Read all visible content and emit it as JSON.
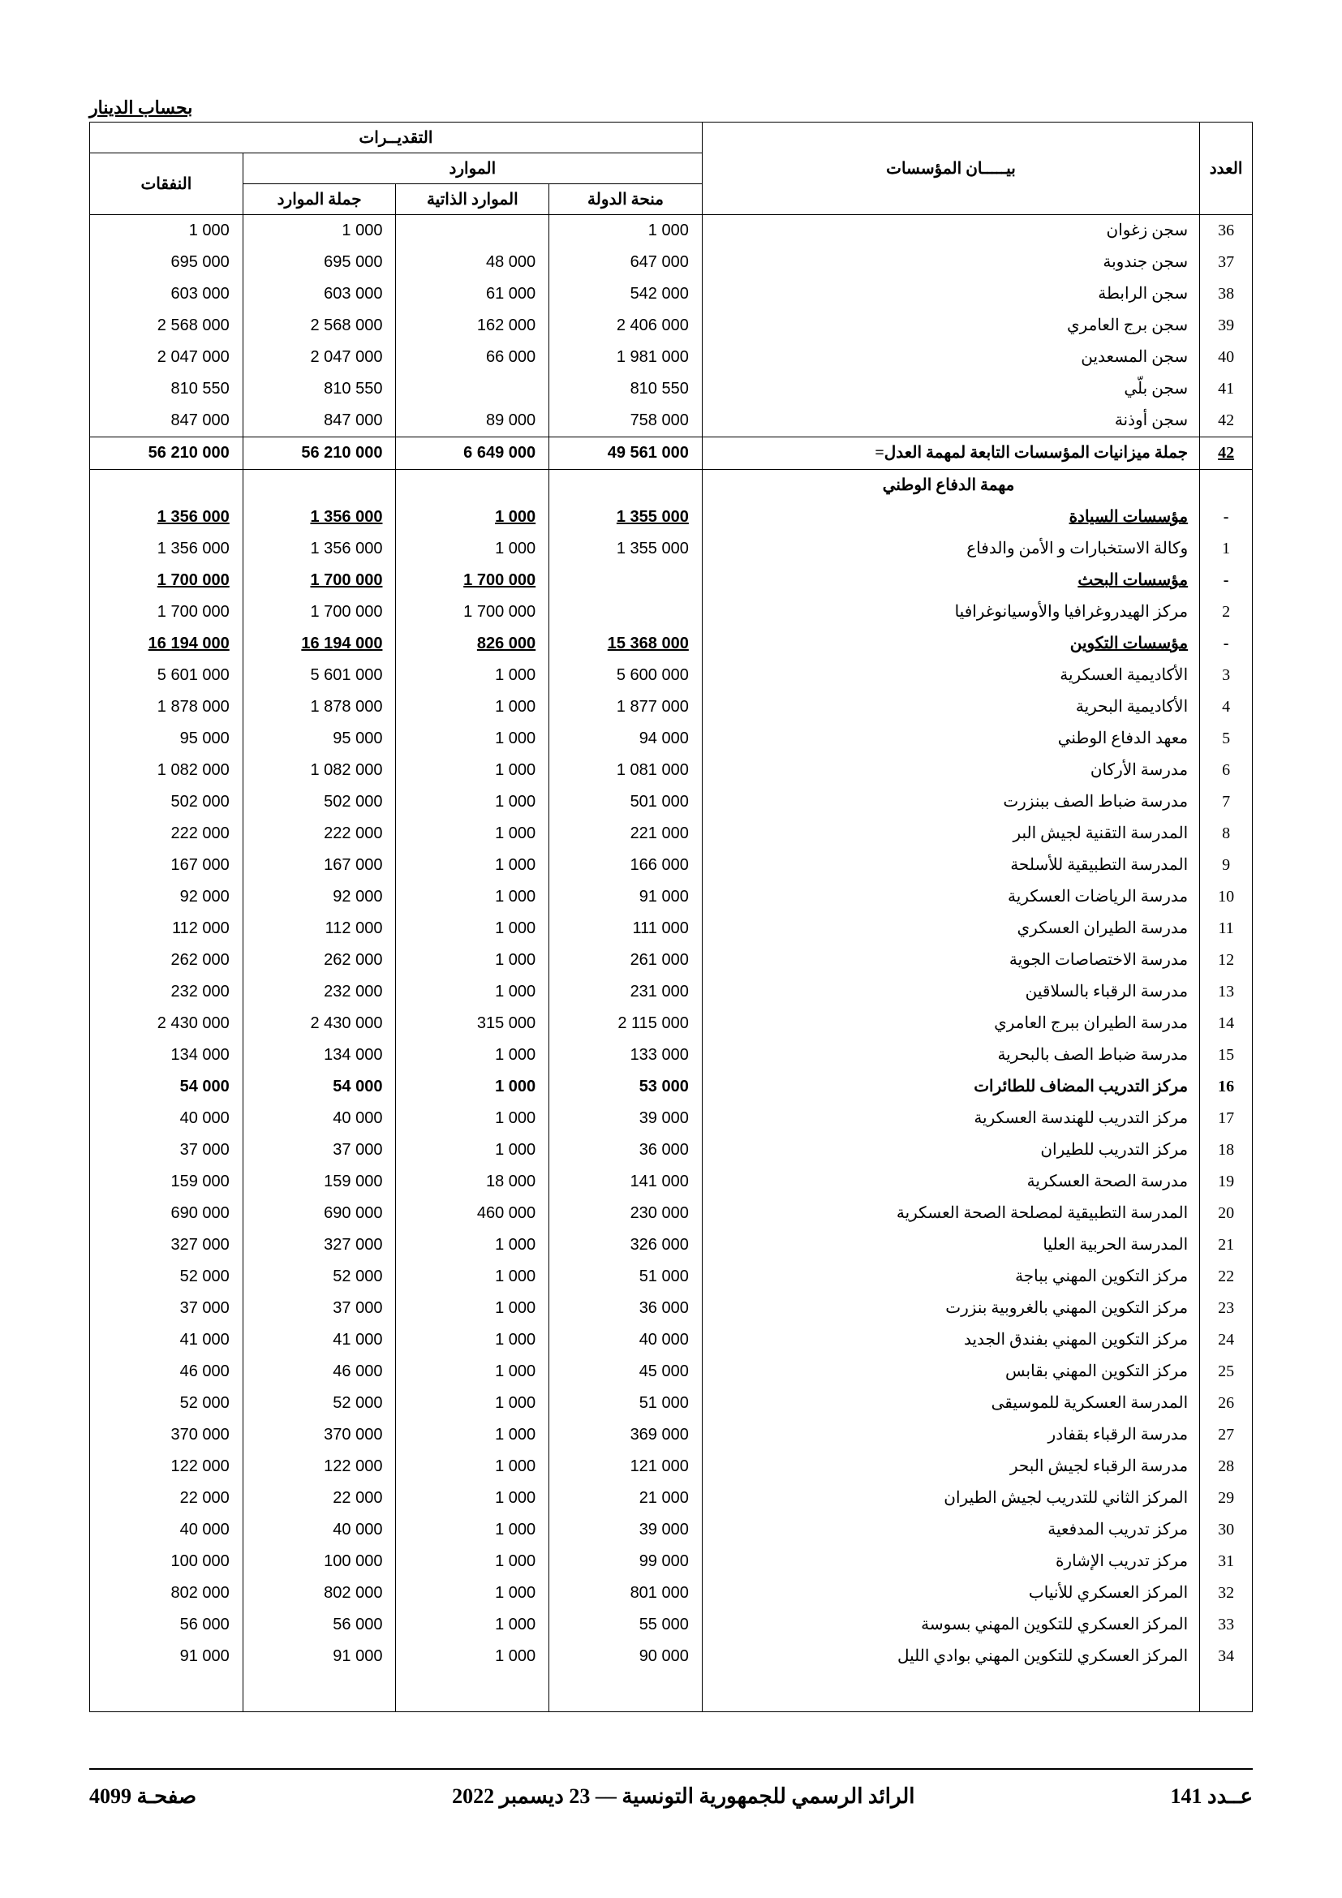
{
  "unit_label": "بحساب الدينار",
  "header": {
    "col_num": "العدد",
    "col_name": "بيـــــان المؤسسات",
    "group_estimates": "التقديــرات",
    "group_resources": "الموارد",
    "col_state_grant": "منحة الدولة",
    "col_own_resources": "الموارد الذاتية",
    "col_total_resources": "جملة الموارد",
    "col_expenses": "النفقات"
  },
  "rows_top": [
    {
      "n": "36",
      "name": "سجن زغوان",
      "c1": "1 000",
      "c2": "",
      "c3": "1 000",
      "c4": "1 000"
    },
    {
      "n": "37",
      "name": "سجن جندوبة",
      "c1": "647 000",
      "c2": "48 000",
      "c3": "695 000",
      "c4": "695 000"
    },
    {
      "n": "38",
      "name": "سجن الرابطة",
      "c1": "542 000",
      "c2": "61 000",
      "c3": "603 000",
      "c4": "603 000"
    },
    {
      "n": "39",
      "name": "سجن برج العامري",
      "c1": "2 406 000",
      "c2": "162 000",
      "c3": "2 568 000",
      "c4": "2 568 000"
    },
    {
      "n": "40",
      "name": "سجن المسعدين",
      "c1": "1 981 000",
      "c2": "66 000",
      "c3": "2 047 000",
      "c4": "2 047 000"
    },
    {
      "n": "41",
      "name": "سجن بلّي",
      "c1": "810 550",
      "c2": "",
      "c3": "810 550",
      "c4": "810 550"
    },
    {
      "n": "42",
      "name": "سجن أوذنة",
      "c1": "758 000",
      "c2": "89 000",
      "c3": "847 000",
      "c4": "847 000"
    }
  ],
  "total_row": {
    "n": "42",
    "name": "جملة ميزانيات المؤسسات التابعة لمهمة  العدل=",
    "c1": "49 561 000",
    "c2": "6 649 000",
    "c3": "56 210 000",
    "c4": "56 210 000"
  },
  "section_title": "مهمة  الدفاع الوطني",
  "sub1": {
    "name": "مؤسسات السيادة",
    "c1": "1 355 000",
    "c2": "1 000",
    "c3": "1 356 000",
    "c4": "1 356 000"
  },
  "r_sub1_1": {
    "n": "1",
    "name": "وكالة الاستخبارات و الأمن والدفاع",
    "c1": "1 355 000",
    "c2": "1 000",
    "c3": "1 356 000",
    "c4": "1 356 000"
  },
  "sub2": {
    "name": "مؤسسات البحث",
    "c1": "",
    "c2": "1 700 000",
    "c3": "1 700 000",
    "c4": "1 700 000"
  },
  "r_sub2_1": {
    "n": "2",
    "name": "مركز الهيدروغرافيا والأوسيانوغرافيا",
    "c1": "",
    "c2": "1 700 000",
    "c3": "1 700 000",
    "c4": "1 700 000"
  },
  "sub3": {
    "name": "مؤسسات التكوين",
    "c1": "15 368 000",
    "c2": "826 000",
    "c3": "16 194 000",
    "c4": "16 194 000"
  },
  "rows_sub3": [
    {
      "n": "3",
      "name": "الأكاديمية العسكرية",
      "c1": "5 600 000",
      "c2": "1 000",
      "c3": "5 601 000",
      "c4": "5 601 000"
    },
    {
      "n": "4",
      "name": "الأكاديمية البحرية",
      "c1": "1 877 000",
      "c2": "1 000",
      "c3": "1 878 000",
      "c4": "1 878 000"
    },
    {
      "n": "5",
      "name": "معهد الدفاع الوطني",
      "c1": "94 000",
      "c2": "1 000",
      "c3": "95 000",
      "c4": "95 000"
    },
    {
      "n": "6",
      "name": "مدرسة الأركان",
      "c1": "1 081 000",
      "c2": "1 000",
      "c3": "1 082 000",
      "c4": "1 082 000"
    },
    {
      "n": "7",
      "name": "مدرسة ضباط الصف ببنزرت",
      "c1": "501 000",
      "c2": "1 000",
      "c3": "502 000",
      "c4": "502 000"
    },
    {
      "n": "8",
      "name": "المدرسة التقنية لجيش البر",
      "c1": "221 000",
      "c2": "1 000",
      "c3": "222 000",
      "c4": "222 000"
    },
    {
      "n": "9",
      "name": "المدرسة التطبيقية للأسلحة",
      "c1": "166 000",
      "c2": "1 000",
      "c3": "167 000",
      "c4": "167 000"
    },
    {
      "n": "10",
      "name": "مدرسة الرياضات العسكرية",
      "c1": "91 000",
      "c2": "1 000",
      "c3": "92 000",
      "c4": "92 000"
    },
    {
      "n": "11",
      "name": "مدرسة الطيران العسكري",
      "c1": "111 000",
      "c2": "1 000",
      "c3": "112 000",
      "c4": "112 000"
    },
    {
      "n": "12",
      "name": "مدرسة الاختصاصات الجوية",
      "c1": "261 000",
      "c2": "1 000",
      "c3": "262 000",
      "c4": "262 000"
    },
    {
      "n": "13",
      "name": "مدرسة الرقباء بالسلاقين",
      "c1": "231 000",
      "c2": "1 000",
      "c3": "232 000",
      "c4": "232 000"
    },
    {
      "n": "14",
      "name": "مدرسة الطيران ببرج العامري",
      "c1": "2 115 000",
      "c2": "315 000",
      "c3": "2 430 000",
      "c4": "2 430 000"
    },
    {
      "n": "15",
      "name": "مدرسة ضباط الصف بالبحرية",
      "c1": "133 000",
      "c2": "1 000",
      "c3": "134 000",
      "c4": "134 000"
    },
    {
      "n": "16",
      "name": "مركز التدريب المضاف للطائرات",
      "c1": "53 000",
      "c2": "1 000",
      "c3": "54 000",
      "c4": "54 000",
      "bold": true
    },
    {
      "n": "17",
      "name": "مركز التدريب للهندسة العسكرية",
      "c1": "39 000",
      "c2": "1 000",
      "c3": "40 000",
      "c4": "40 000"
    },
    {
      "n": "18",
      "name": "مركز التدريب للطيران",
      "c1": "36 000",
      "c2": "1 000",
      "c3": "37 000",
      "c4": "37 000"
    },
    {
      "n": "19",
      "name": "مدرسة الصحة العسكرية",
      "c1": "141 000",
      "c2": "18 000",
      "c3": "159 000",
      "c4": "159 000"
    },
    {
      "n": "20",
      "name": "المدرسة التطبيقية لمصلحة الصحة العسكرية",
      "c1": "230 000",
      "c2": "460 000",
      "c3": "690 000",
      "c4": "690 000"
    },
    {
      "n": "21",
      "name": "المدرسة الحربية العليا",
      "c1": "326 000",
      "c2": "1 000",
      "c3": "327 000",
      "c4": "327 000"
    },
    {
      "n": "22",
      "name": "مركز التكوين المهني بباجة",
      "c1": "51 000",
      "c2": "1 000",
      "c3": "52 000",
      "c4": "52 000"
    },
    {
      "n": "23",
      "name": "مركز التكوين المهني بالغروبية بنزرت",
      "c1": "36 000",
      "c2": "1 000",
      "c3": "37 000",
      "c4": "37 000"
    },
    {
      "n": "24",
      "name": "مركز التكوين المهني بفندق الجديد",
      "c1": "40 000",
      "c2": "1 000",
      "c3": "41 000",
      "c4": "41 000"
    },
    {
      "n": "25",
      "name": "مركز التكوين المهني بقابس",
      "c1": "45 000",
      "c2": "1 000",
      "c3": "46 000",
      "c4": "46 000"
    },
    {
      "n": "26",
      "name": "المدرسة العسكرية للموسيقى",
      "c1": "51 000",
      "c2": "1 000",
      "c3": "52 000",
      "c4": "52 000"
    },
    {
      "n": "27",
      "name": "مدرسة الرقباء بقفادر",
      "c1": "369 000",
      "c2": "1 000",
      "c3": "370 000",
      "c4": "370 000"
    },
    {
      "n": "28",
      "name": "مدرسة الرقباء لجيش البحر",
      "c1": "121 000",
      "c2": "1 000",
      "c3": "122 000",
      "c4": "122 000"
    },
    {
      "n": "29",
      "name": "المركز الثاني للتدريب لجيش الطيران",
      "c1": "21 000",
      "c2": "1 000",
      "c3": "22 000",
      "c4": "22 000"
    },
    {
      "n": "30",
      "name": "مركز تدريب المدفعية",
      "c1": "39 000",
      "c2": "1 000",
      "c3": "40 000",
      "c4": "40 000"
    },
    {
      "n": "31",
      "name": "مركز تدريب الإشارة",
      "c1": "99 000",
      "c2": "1 000",
      "c3": "100 000",
      "c4": "100 000"
    },
    {
      "n": "32",
      "name": "المركز العسكري للأنياب",
      "c1": "801 000",
      "c2": "1 000",
      "c3": "802 000",
      "c4": "802 000"
    },
    {
      "n": "33",
      "name": "المركز العسكري للتكوين المهني بسوسة",
      "c1": "55 000",
      "c2": "1 000",
      "c3": "56 000",
      "c4": "56 000"
    },
    {
      "n": "34",
      "name": "المركز العسكري للتكوين المهني بوادي الليل",
      "c1": "90 000",
      "c2": "1 000",
      "c3": "91 000",
      "c4": "91 000"
    }
  ],
  "footer": {
    "right": "عــدد 141",
    "center": "الرائد الرسمي للجمهورية التونسية –– 23 ديسمبر 2022",
    "left": "صفحـة 4099"
  }
}
